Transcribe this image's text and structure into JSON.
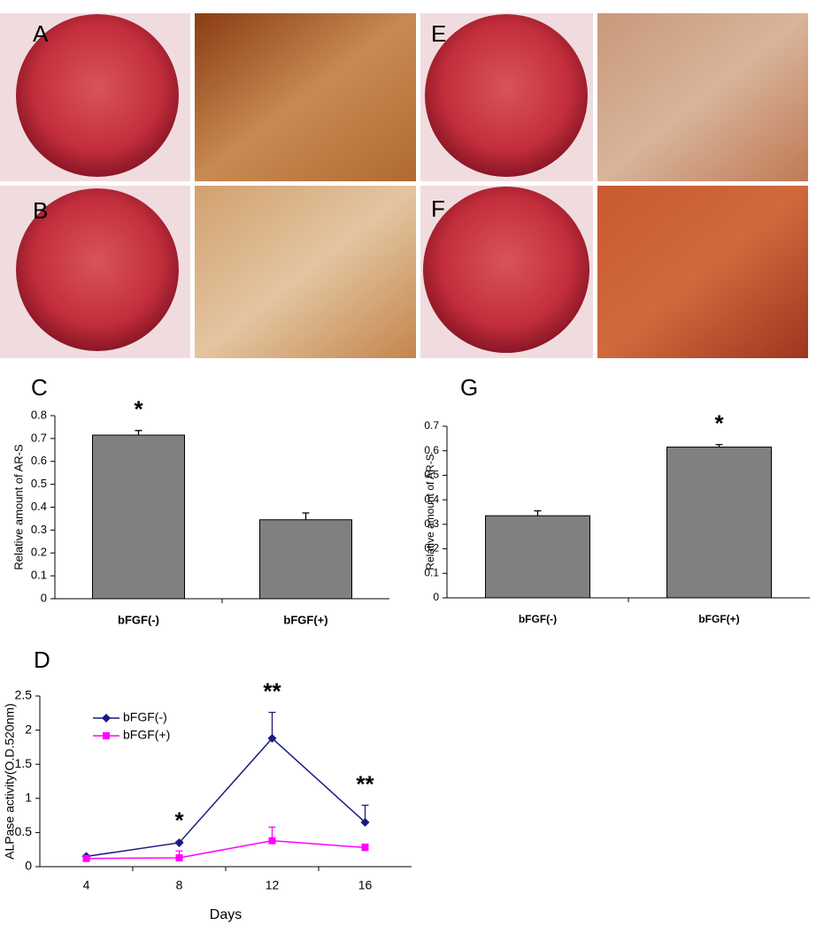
{
  "panels": [
    "A",
    "B",
    "E",
    "F"
  ],
  "chart_data": [
    {
      "type": "bar",
      "panel": "C",
      "y_label": "Relative amount of AR-S",
      "categories": [
        "bFGF(-)",
        "bFGF(+)"
      ],
      "values": [
        0.715,
        0.345
      ],
      "errors": [
        0.02,
        0.03
      ],
      "color": "#808080",
      "ylim": [
        0,
        0.8
      ],
      "yticks": [
        0,
        0.1,
        0.2,
        0.3,
        0.4,
        0.5,
        0.6,
        0.7,
        0.8
      ],
      "annotations": [
        {
          "text": "*",
          "category": "bFGF(-)"
        }
      ]
    },
    {
      "type": "bar",
      "panel": "G",
      "y_label": "Relative amount of AR-S",
      "categories": [
        "bFGF(-)",
        "bFGF(+)"
      ],
      "values": [
        0.335,
        0.615
      ],
      "errors": [
        0.02,
        0.01
      ],
      "color": "#808080",
      "ylim": [
        0,
        0.7
      ],
      "yticks": [
        0,
        0.1,
        0.2,
        0.3,
        0.4,
        0.5,
        0.6,
        0.7
      ],
      "annotations": [
        {
          "text": "*",
          "category": "bFGF(+)"
        }
      ]
    },
    {
      "type": "line",
      "panel": "D",
      "x_label": "Days",
      "y_label": "ALPase activity(O.D.520nm)",
      "categories": [
        "4",
        "8",
        "12",
        "16"
      ],
      "series": [
        {
          "name": "bFGF(-)",
          "color": "#1a1a80",
          "marker": "diamond",
          "values": [
            0.15,
            0.35,
            1.88,
            0.65
          ],
          "errors": [
            0.02,
            0.02,
            0.38,
            0.25
          ]
        },
        {
          "name": "bFGF(+)",
          "color": "#ff00ff",
          "marker": "square",
          "values": [
            0.12,
            0.13,
            0.38,
            0.28
          ],
          "errors": [
            0.02,
            0.1,
            0.2,
            0.05
          ]
        }
      ],
      "ylim": [
        0,
        2.5
      ],
      "yticks": [
        0,
        0.5,
        1,
        1.5,
        2,
        2.5
      ],
      "legend": "top-left",
      "annotations": [
        {
          "text": "*",
          "category": "8"
        },
        {
          "text": "**",
          "category": "12"
        },
        {
          "text": "**",
          "category": "16"
        }
      ]
    }
  ]
}
